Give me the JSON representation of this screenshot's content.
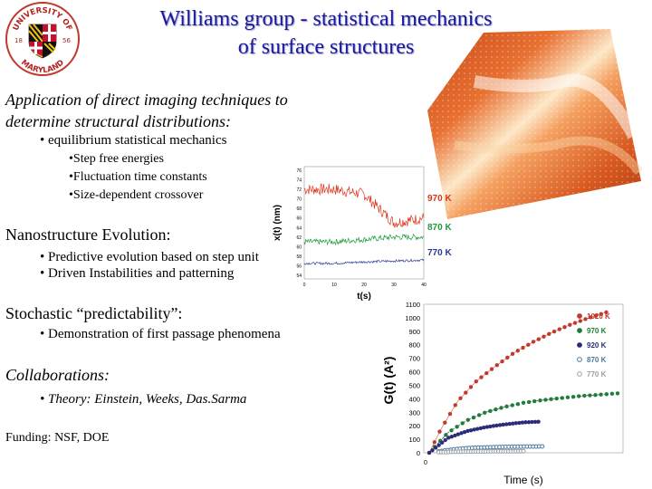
{
  "slide": {
    "title_line1": "Williams group - statistical mechanics",
    "title_line2": "of surface structures",
    "logo": {
      "top": "UNIVERSITY OF",
      "bottom": "MARYLAND",
      "year_left": "18",
      "year_right": "56"
    },
    "sections": [
      {
        "heading": "Application of direct imaging techniques to",
        "heading2": "determine structural distributions:",
        "bullet": "equilibrium statistical mechanics",
        "subbullets": [
          "Step free energies",
          "Fluctuation time constants",
          "Size-dependent crossover"
        ]
      },
      {
        "heading": "Nanostructure Evolution:",
        "bullets": [
          "Predictive evolution based on step unit",
          "Driven Instabilities and patterning"
        ]
      },
      {
        "heading": "Stochastic “predictability”:",
        "bullets": [
          "Demonstration of first passage phenomena"
        ]
      },
      {
        "heading": "Collaborations:",
        "bullets": [
          "Theory:  Einstein, Weeks, Das.Sarma"
        ]
      }
    ],
    "funding": "Funding: NSF, DOE"
  },
  "colors": {
    "title": "#1a1aa0",
    "label_red": "#e0341c",
    "label_green": "#1e9a3a",
    "label_blue": "#2a3a9a"
  },
  "chart_data": [
    {
      "type": "line",
      "title": "",
      "xlabel": "t(s)",
      "ylabel": "x(t) (nm)",
      "xticks": [
        "0",
        "10",
        "20",
        "30",
        "40"
      ],
      "yticks": [
        "76",
        "74",
        "72",
        "70",
        "68",
        "66",
        "64",
        "62",
        "60",
        "58",
        "56",
        "54"
      ],
      "xlim": [
        0,
        40
      ],
      "series": [
        {
          "name": "970 K",
          "level": [
            72.0,
            72.0,
            71.0,
            65.0,
            66.0
          ],
          "noise": 1.2
        },
        {
          "name": "870 K",
          "level": [
            61.0,
            61.0,
            61.5,
            62.0,
            62.0
          ],
          "noise": 0.6
        },
        {
          "name": "770 K",
          "level": [
            56.5,
            56.5,
            56.8,
            57.0,
            57.2
          ],
          "noise": 0.25
        }
      ]
    },
    {
      "type": "scatter",
      "title": "",
      "xlabel": "Time (s)",
      "ylabel": "G(t) (A²)",
      "yticks": [
        "1100",
        "1000",
        "900",
        "800",
        "700",
        "600",
        "500",
        "400",
        "300",
        "200",
        "100",
        "0"
      ],
      "xtick0": "0",
      "ylim": [
        0,
        1100
      ],
      "x_range": [
        0,
        1
      ],
      "series": [
        {
          "name": "1020 K",
          "x": [
            0,
            0.06,
            0.15,
            0.25,
            0.35,
            0.45,
            0.55,
            0.65,
            0.75,
            0.85,
            0.94
          ],
          "y": [
            0,
            170,
            380,
            530,
            640,
            740,
            820,
            890,
            950,
            1000,
            1040
          ]
        },
        {
          "name": "970 K",
          "x": [
            0,
            0.1,
            0.2,
            0.3,
            0.4,
            0.5,
            0.6,
            0.7,
            0.8,
            0.9,
            1.0
          ],
          "y": [
            0,
            150,
            240,
            300,
            340,
            370,
            390,
            405,
            420,
            430,
            440
          ]
        },
        {
          "name": "920 K",
          "x": [
            0,
            0.1,
            0.2,
            0.3,
            0.4,
            0.5,
            0.58
          ],
          "y": [
            0,
            110,
            160,
            190,
            210,
            225,
            230
          ]
        },
        {
          "name": "870 K",
          "x": [
            0.05,
            0.1,
            0.15,
            0.2,
            0.25,
            0.3,
            0.35,
            0.4,
            0.45,
            0.5,
            0.55,
            0.6
          ],
          "y": [
            10,
            20,
            28,
            34,
            38,
            40,
            42,
            44,
            45,
            46,
            46,
            47
          ]
        },
        {
          "name": "770 K",
          "x": [
            0.05,
            0.1,
            0.15,
            0.2,
            0.25,
            0.3,
            0.35,
            0.4,
            0.45,
            0.5
          ],
          "y": [
            4,
            6,
            8,
            9,
            10,
            10,
            11,
            11,
            11,
            12
          ]
        }
      ]
    }
  ]
}
